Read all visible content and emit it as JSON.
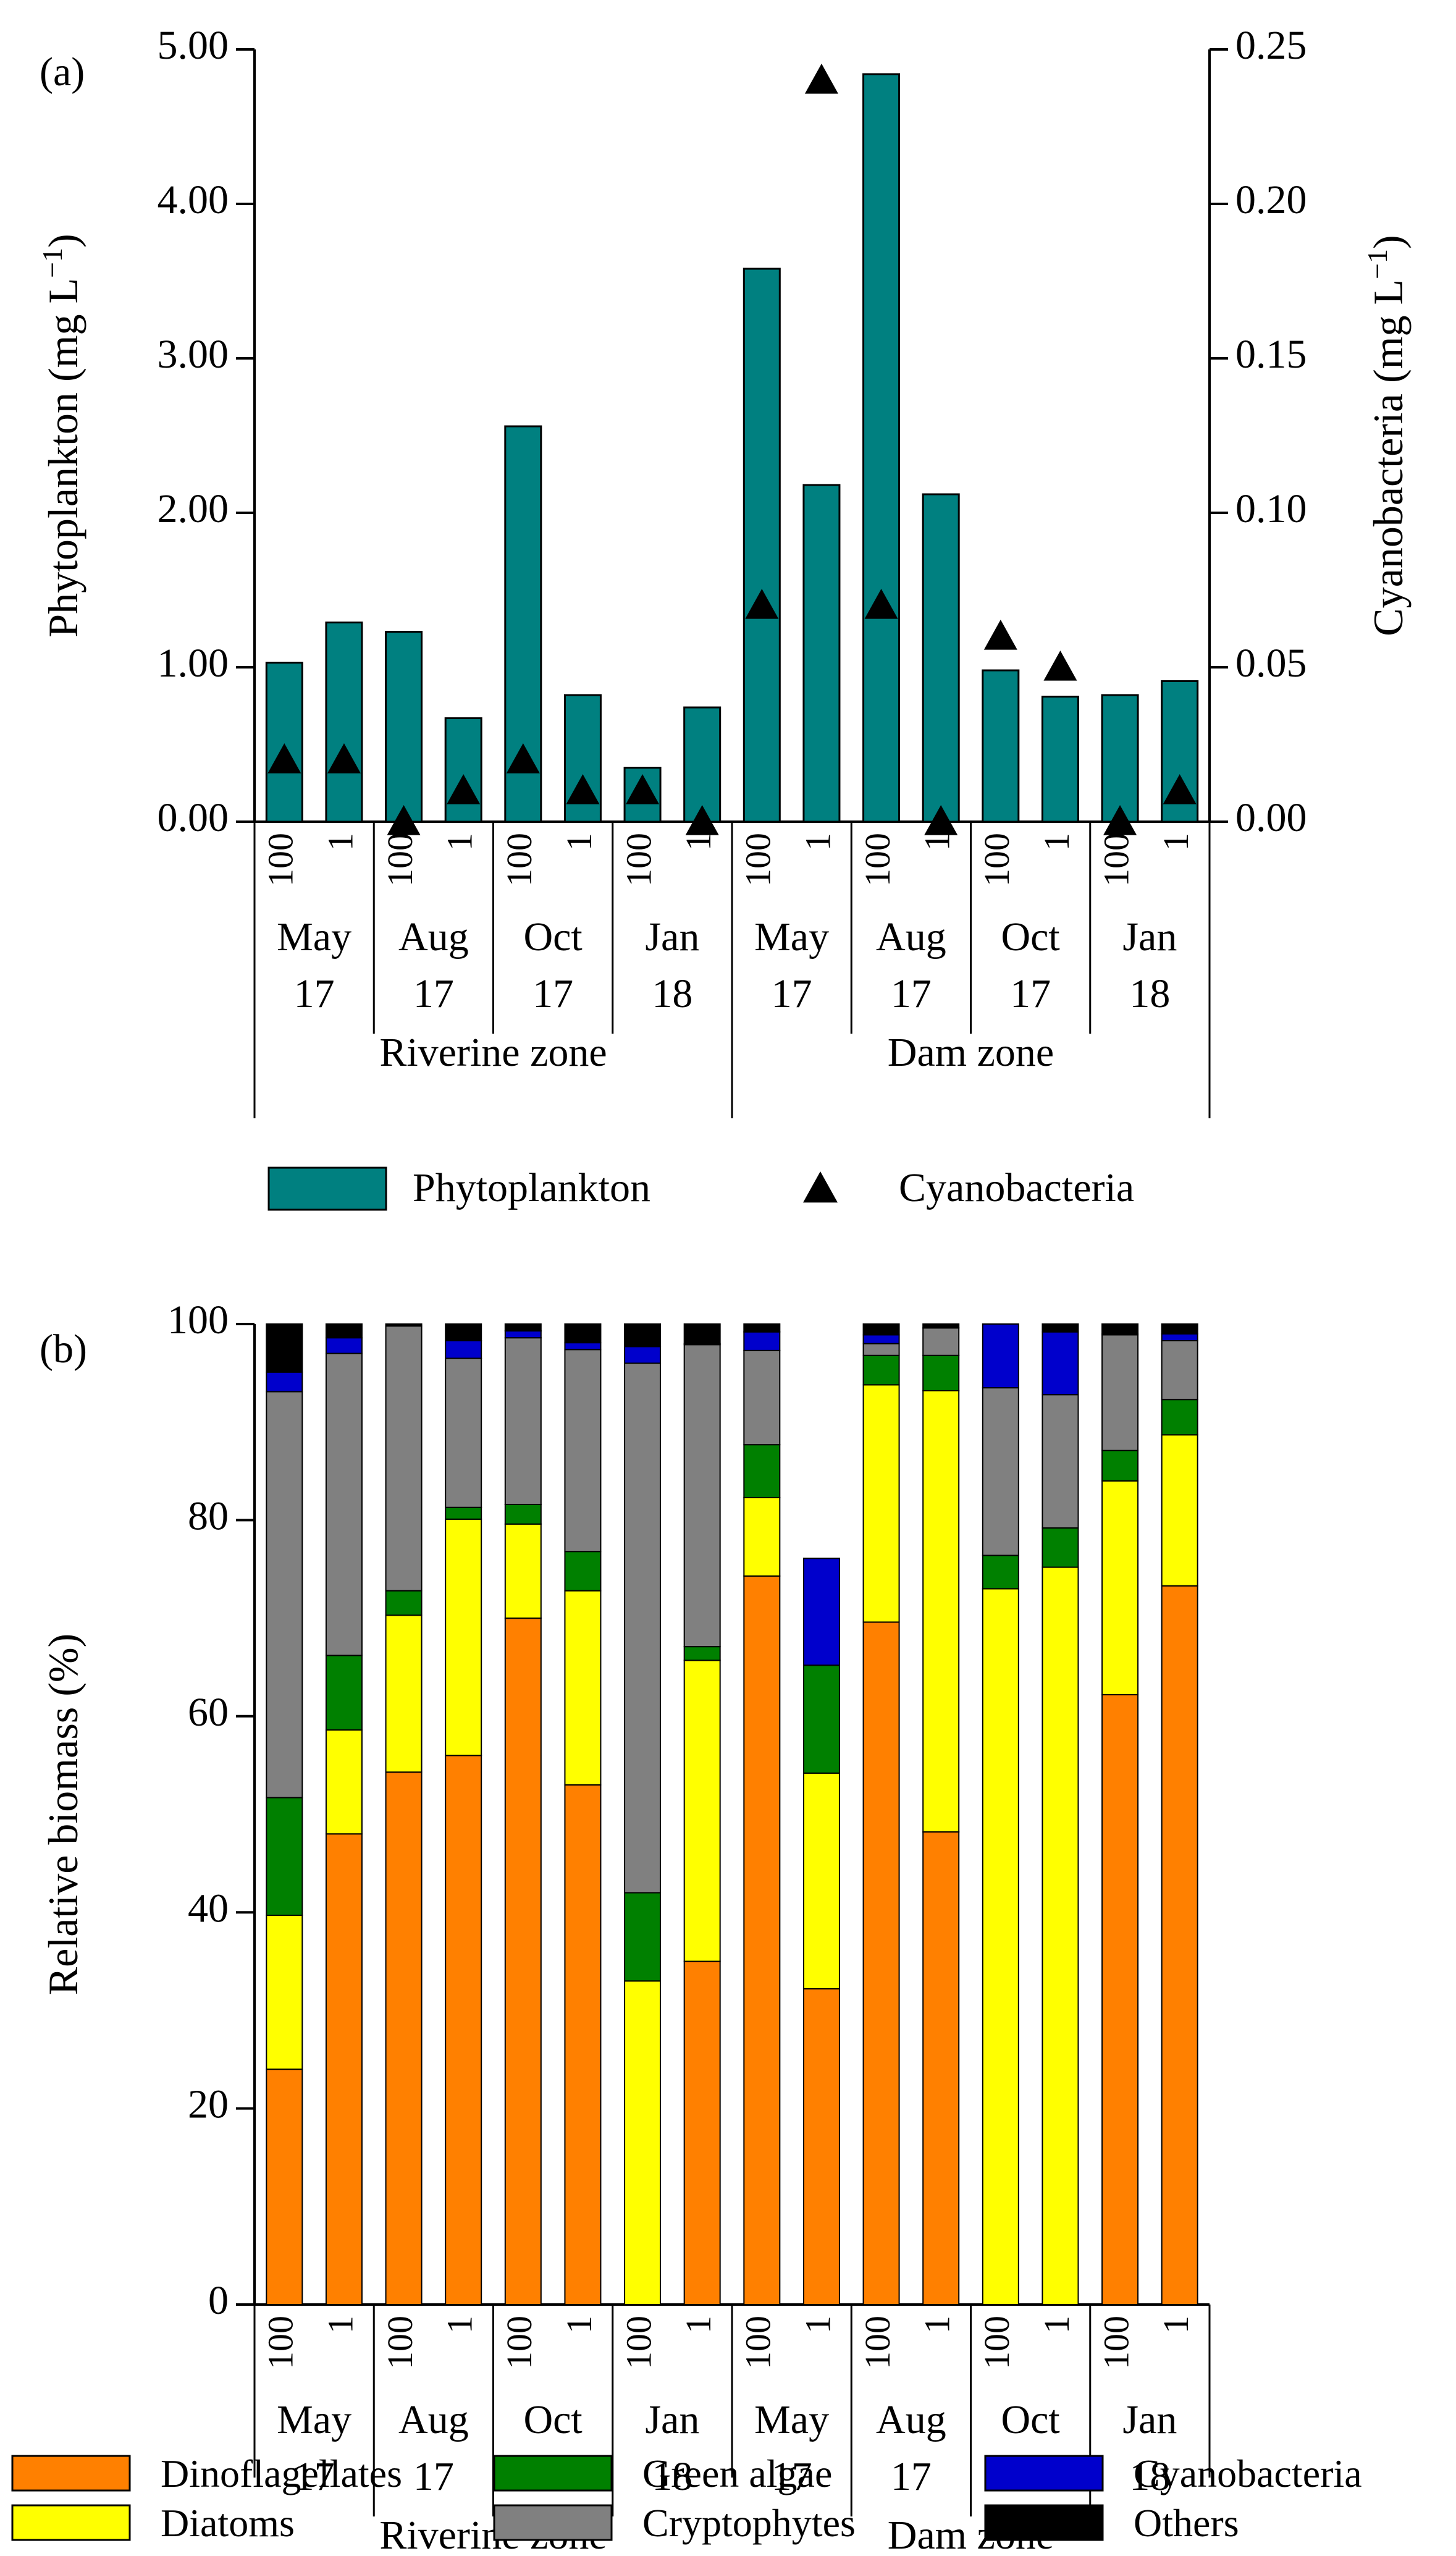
{
  "chart_data": [
    {
      "id": "a",
      "type": "bar",
      "panel_label": "(a)",
      "categories": [
        "100",
        "1",
        "100",
        "1",
        "100",
        "1",
        "100",
        "1",
        "100",
        "1",
        "100",
        "1",
        "100",
        "1",
        "100",
        "1"
      ],
      "groups": [
        {
          "label": [
            "May",
            "17"
          ],
          "span": [
            0,
            1
          ]
        },
        {
          "label": [
            "Aug",
            "17"
          ],
          "span": [
            2,
            3
          ]
        },
        {
          "label": [
            "Oct",
            "17"
          ],
          "span": [
            4,
            5
          ]
        },
        {
          "label": [
            "Jan",
            "18"
          ],
          "span": [
            6,
            7
          ]
        },
        {
          "label": [
            "May",
            "17"
          ],
          "span": [
            8,
            9
          ]
        },
        {
          "label": [
            "Aug",
            "17"
          ],
          "span": [
            10,
            11
          ]
        },
        {
          "label": [
            "Oct",
            "17"
          ],
          "span": [
            12,
            13
          ]
        },
        {
          "label": [
            "Jan",
            "18"
          ],
          "span": [
            14,
            15
          ]
        }
      ],
      "zones": [
        {
          "label": "Riverine zone",
          "span": [
            0,
            7
          ]
        },
        {
          "label": "Dam zone",
          "span": [
            8,
            15
          ]
        }
      ],
      "series": [
        {
          "name": "Phytoplankton",
          "axis": "left",
          "kind": "bar",
          "color": "#008080",
          "values": [
            1.03,
            1.29,
            1.23,
            0.67,
            2.56,
            0.82,
            0.35,
            0.74,
            3.58,
            2.18,
            4.84,
            2.12,
            0.98,
            0.81,
            0.82,
            0.91
          ]
        },
        {
          "name": "Cyanobacteria",
          "axis": "right",
          "kind": "marker-triangle",
          "color": "#000000",
          "values": [
            0.02,
            0.02,
            0.0,
            0.01,
            0.02,
            0.01,
            0.01,
            0.0,
            0.07,
            0.24,
            0.07,
            0.0,
            0.06,
            0.05,
            0.0,
            0.01
          ]
        }
      ],
      "ylabel_left": "Phytoplankton (mg L",
      "ylabel_right": "Cyanobacteria (mg L",
      "ylabel_unit_exp": "−1",
      "ylim_left": [
        0,
        5
      ],
      "ylim_right": [
        0,
        0.25
      ],
      "yticks_left": [
        "0.00",
        "1.00",
        "2.00",
        "3.00",
        "4.00",
        "5.00"
      ],
      "yticks_right": [
        "0.00",
        "0.05",
        "0.10",
        "0.15",
        "0.20",
        "0.25"
      ],
      "legend": [
        {
          "name": "Phytoplankton",
          "swatch": "bar",
          "color": "#008080"
        },
        {
          "name": "Cyanobacteria",
          "swatch": "triangle",
          "color": "#000000"
        }
      ]
    },
    {
      "id": "b",
      "type": "stacked-bar",
      "panel_label": "(b)",
      "categories": [
        "100",
        "1",
        "100",
        "1",
        "100",
        "1",
        "100",
        "1",
        "100",
        "1",
        "100",
        "1",
        "100",
        "1",
        "100",
        "1"
      ],
      "groups": [
        {
          "label": [
            "May",
            "17"
          ],
          "span": [
            0,
            1
          ]
        },
        {
          "label": [
            "Aug",
            "17"
          ],
          "span": [
            2,
            3
          ]
        },
        {
          "label": [
            "Oct",
            "17"
          ],
          "span": [
            4,
            5
          ]
        },
        {
          "label": [
            "Jan",
            "18"
          ],
          "span": [
            6,
            7
          ]
        },
        {
          "label": [
            "May",
            "17"
          ],
          "span": [
            8,
            9
          ]
        },
        {
          "label": [
            "Aug",
            "17"
          ],
          "span": [
            10,
            11
          ]
        },
        {
          "label": [
            "Oct",
            "17"
          ],
          "span": [
            12,
            13
          ]
        },
        {
          "label": [
            "Jan",
            "18"
          ],
          "span": [
            14,
            15
          ]
        }
      ],
      "zones": [
        {
          "label": "Riverine zone",
          "span": [
            0,
            7
          ]
        },
        {
          "label": "Dam zone",
          "span": [
            8,
            15
          ]
        }
      ],
      "series": [
        {
          "name": "Dinoflagellates",
          "color": "#FF8000",
          "values": [
            24.0,
            48.0,
            54.3,
            56.0,
            70.0,
            53.0,
            0.0,
            35.0,
            74.3,
            32.2,
            69.6,
            48.2,
            0.0,
            0.0,
            62.2,
            73.3
          ]
        },
        {
          "name": "Diatoms",
          "color": "#FFFF00",
          "values": [
            15.7,
            10.6,
            16.0,
            24.1,
            9.6,
            19.8,
            33.0,
            30.7,
            8.0,
            22.0,
            24.2,
            45.0,
            73.0,
            75.2,
            21.8,
            15.4
          ]
        },
        {
          "name": "Green algae",
          "color": "#008000",
          "values": [
            12.0,
            7.6,
            2.5,
            1.2,
            2.0,
            4.0,
            9.0,
            1.4,
            5.4,
            11.0,
            3.0,
            3.6,
            3.4,
            4.0,
            3.1,
            3.6
          ]
        },
        {
          "name": "Cryptophytes",
          "color": "#808080",
          "values": [
            41.4,
            30.8,
            27.0,
            15.2,
            17.0,
            20.6,
            54.0,
            30.8,
            9.6,
            0.0,
            1.2,
            2.8,
            17.1,
            13.6,
            11.8,
            6.0
          ]
        },
        {
          "name": "Cyanobacteria",
          "color": "#0000CC",
          "values": [
            2.0,
            1.6,
            0.0,
            1.8,
            0.7,
            0.7,
            1.7,
            0.1,
            1.9,
            10.9,
            0.9,
            0.0,
            6.5,
            6.4,
            0.1,
            0.7
          ]
        },
        {
          "name": "Others",
          "color": "#000000",
          "values": [
            4.9,
            1.4,
            0.2,
            1.7,
            0.7,
            1.9,
            2.3,
            2.0,
            0.8,
            0.0,
            1.1,
            0.4,
            0.0,
            0.8,
            1.0,
            1.0
          ]
        }
      ],
      "ylabel": "Relative biomass (%)",
      "ylim": [
        0,
        100
      ],
      "yticks": [
        "0",
        "20",
        "40",
        "60",
        "80",
        "100"
      ],
      "legend": [
        {
          "name": "Dinoflagellates",
          "color": "#FF8000"
        },
        {
          "name": "Green algae",
          "color": "#008000"
        },
        {
          "name": "Cyanobacteria",
          "color": "#0000CC"
        },
        {
          "name": "Diatoms",
          "color": "#FFFF00"
        },
        {
          "name": "Cryptophytes",
          "color": "#808080"
        },
        {
          "name": "Others",
          "color": "#000000"
        }
      ]
    }
  ]
}
